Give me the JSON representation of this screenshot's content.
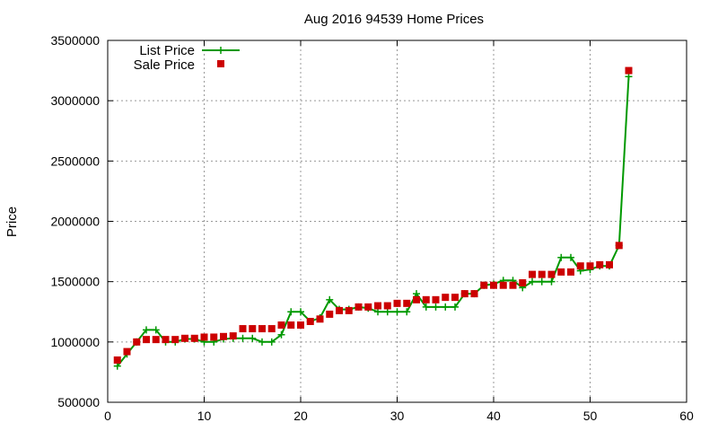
{
  "chart_data": {
    "type": "line",
    "title": "Aug 2016 94539 Home Prices",
    "xlabel": "",
    "ylabel": "Price",
    "xlim": [
      0,
      60
    ],
    "ylim": [
      500000,
      3500000
    ],
    "xticks": [
      0,
      10,
      20,
      30,
      40,
      50,
      60
    ],
    "yticks": [
      500000,
      1000000,
      1500000,
      2000000,
      2500000,
      3000000,
      3500000
    ],
    "grid": true,
    "legend_position": "top-left",
    "series": [
      {
        "name": "List Price",
        "style": "line-with-plus-markers",
        "color": "#009900",
        "x": [
          1,
          2,
          3,
          4,
          5,
          6,
          7,
          8,
          9,
          10,
          11,
          12,
          13,
          14,
          15,
          16,
          17,
          18,
          19,
          20,
          21,
          22,
          23,
          24,
          25,
          26,
          27,
          28,
          29,
          30,
          31,
          32,
          33,
          34,
          35,
          36,
          37,
          38,
          39,
          40,
          41,
          42,
          43,
          44,
          45,
          46,
          47,
          48,
          49,
          50,
          51,
          52,
          53,
          54
        ],
        "values": [
          800000,
          900000,
          1000000,
          1100000,
          1100000,
          1000000,
          1000000,
          1025000,
          1025000,
          1000000,
          1000000,
          1025000,
          1030000,
          1030000,
          1030000,
          1000000,
          1000000,
          1060000,
          1250000,
          1250000,
          1170000,
          1200000,
          1350000,
          1270000,
          1270000,
          1290000,
          1280000,
          1250000,
          1250000,
          1250000,
          1250000,
          1400000,
          1290000,
          1290000,
          1290000,
          1290000,
          1400000,
          1400000,
          1470000,
          1480000,
          1510000,
          1510000,
          1450000,
          1500000,
          1500000,
          1500000,
          1700000,
          1700000,
          1590000,
          1600000,
          1630000,
          1630000,
          1800000,
          3200000
        ]
      },
      {
        "name": "Sale Price",
        "style": "square-markers",
        "color": "#cc0000",
        "x": [
          1,
          2,
          3,
          4,
          5,
          6,
          7,
          8,
          9,
          10,
          11,
          12,
          13,
          14,
          15,
          16,
          17,
          18,
          19,
          20,
          21,
          22,
          23,
          24,
          25,
          26,
          27,
          28,
          29,
          30,
          31,
          32,
          33,
          34,
          35,
          36,
          37,
          38,
          39,
          40,
          41,
          42,
          43,
          44,
          45,
          46,
          47,
          48,
          49,
          50,
          51,
          52,
          53,
          54
        ],
        "values": [
          850000,
          920000,
          1000000,
          1020000,
          1020000,
          1020000,
          1020000,
          1030000,
          1030000,
          1040000,
          1040000,
          1045000,
          1050000,
          1110000,
          1110000,
          1110000,
          1110000,
          1140000,
          1140000,
          1140000,
          1170000,
          1190000,
          1230000,
          1260000,
          1260000,
          1290000,
          1290000,
          1300000,
          1300000,
          1320000,
          1320000,
          1350000,
          1350000,
          1350000,
          1370000,
          1370000,
          1400000,
          1400000,
          1470000,
          1470000,
          1470000,
          1470000,
          1490000,
          1560000,
          1560000,
          1560000,
          1580000,
          1580000,
          1630000,
          1630000,
          1640000,
          1640000,
          1800000,
          3250000
        ]
      }
    ]
  }
}
